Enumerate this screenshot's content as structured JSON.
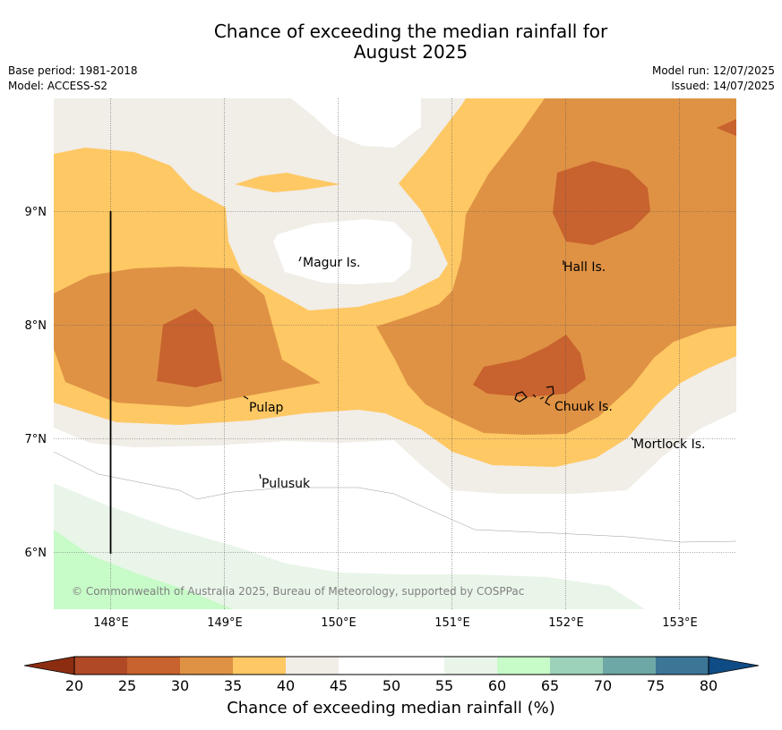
{
  "title": {
    "line1": "Chance of exceeding the median rainfall for",
    "line2": "August 2025"
  },
  "meta": {
    "base_period": "Base period: 1981-2018",
    "model": "Model: ACCESS-S2",
    "model_run": "Model run: 12/07/2025",
    "issued": "Issued: 14/07/2025"
  },
  "map": {
    "lat_labels": [
      "9°N",
      "8°N",
      "7°N",
      "6°N"
    ],
    "lon_labels": [
      "148°E",
      "149°E",
      "150°E",
      "151°E",
      "152°E",
      "153°E"
    ],
    "places": {
      "magur": "Magur Is.",
      "hall": "Hall Is.",
      "pulap": "Pulap",
      "chuuk": "Chuuk Is.",
      "mortlock": "Mortlock Is.",
      "pulusuk": "Pulusuk"
    },
    "copyright": "© Commonwealth of Australia 2025, Bureau of Meteorology, supported by COSPPac"
  },
  "legend": {
    "title": "Chance of exceeding median rainfall (%)",
    "ticks": [
      "20",
      "25",
      "30",
      "35",
      "40",
      "45",
      "50",
      "55",
      "60",
      "65",
      "70",
      "75",
      "80"
    ],
    "colors": {
      "below_20": "#8c2d12",
      "20_25": "#b04a26",
      "25_30": "#c8622e",
      "30_35": "#df9244",
      "35_40": "#fec864",
      "40_45": "#f1ede7",
      "45_50": "#ffffff",
      "50_55": "#ffffff",
      "55_60": "#eaf5e9",
      "60_65": "#c7fbc8",
      "65_70": "#9dd2ba",
      "70_75": "#6ea8a6",
      "75_80": "#3b7697",
      "above_80": "#0f4c85"
    }
  }
}
